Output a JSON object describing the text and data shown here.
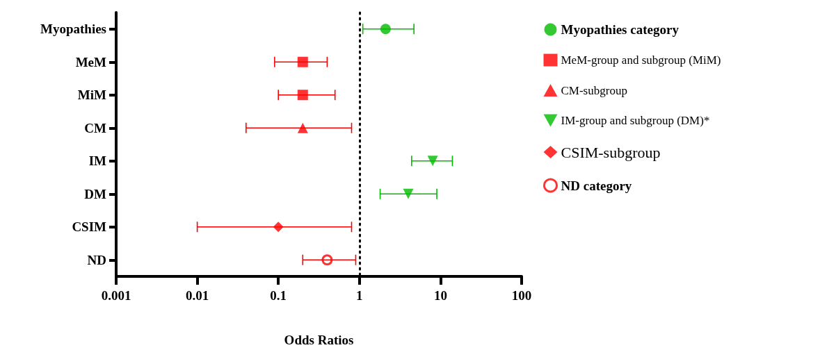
{
  "chart_data": {
    "type": "scatter",
    "orientation": "horizontal",
    "xlabel": "Odds Ratios",
    "categories": [
      "Myopathies",
      "MeM",
      "MiM",
      "CM",
      "IM",
      "DM",
      "CSIM",
      "ND"
    ],
    "log": "x",
    "xlim": [
      0.001,
      100
    ],
    "xticks": [
      0.001,
      0.01,
      0.1,
      1,
      10,
      100
    ],
    "grid": false,
    "legend": "right",
    "ref_lines": [
      {
        "axis": "x",
        "value": 1,
        "line_style": "dotted",
        "color": "#000000"
      }
    ],
    "series": [
      {
        "name": "Myopathies category",
        "color": "#00bb00",
        "marker": "circle",
        "values": [
          2.1,
          null,
          null,
          null,
          null,
          null,
          null,
          null
        ],
        "errors": [
          [
            1.1,
            4.7
          ],
          null,
          null,
          null,
          null,
          null,
          null,
          null
        ]
      },
      {
        "name": "MeM-group and subgroup (MiM)",
        "color": "#ff0000",
        "marker": "square",
        "values": [
          null,
          0.2,
          0.2,
          null,
          null,
          null,
          null,
          null
        ],
        "errors": [
          null,
          [
            0.09,
            0.4
          ],
          [
            0.1,
            0.5
          ],
          null,
          null,
          null,
          null,
          null
        ]
      },
      {
        "name": "CM-subgroup",
        "color": "#ff0000",
        "marker": "triangle",
        "values": [
          null,
          null,
          null,
          0.2,
          null,
          null,
          null,
          null
        ],
        "errors": [
          null,
          null,
          null,
          [
            0.04,
            0.8
          ],
          null,
          null,
          null,
          null
        ]
      },
      {
        "name": "IM-group and subgroup (DM)*",
        "color": "#00bb00",
        "marker": "triangle_down",
        "values": [
          null,
          null,
          null,
          null,
          8,
          4,
          null,
          null
        ],
        "errors": [
          null,
          null,
          null,
          null,
          [
            4.4,
            14
          ],
          [
            1.8,
            9
          ],
          null,
          null
        ]
      },
      {
        "name": "CSIM-subgroup",
        "color": "#ff0000",
        "marker": "diamond",
        "values": [
          null,
          null,
          null,
          null,
          null,
          null,
          0.1,
          null
        ],
        "errors": [
          null,
          null,
          null,
          null,
          null,
          null,
          [
            0.01,
            0.8
          ],
          null
        ]
      },
      {
        "name": "ND category",
        "color": "#ff0000",
        "marker": "circle_open",
        "values": [
          null,
          null,
          null,
          null,
          null,
          null,
          null,
          0.4
        ],
        "errors": [
          null,
          null,
          null,
          null,
          null,
          null,
          null,
          [
            0.2,
            0.9
          ]
        ]
      }
    ]
  }
}
